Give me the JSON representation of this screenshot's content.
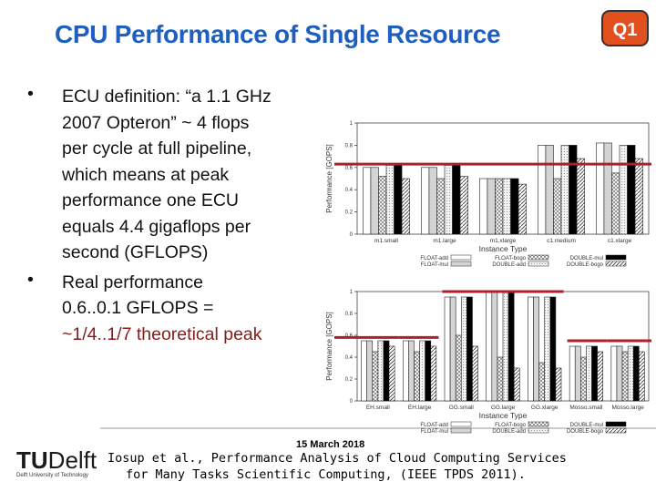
{
  "slide": {
    "title": "CPU Performance of Single Resource",
    "badge": "Q1",
    "bullets": [
      [
        "ECU definition: “a 1.1 GHz",
        "2007 Opteron” ~ 4 flops",
        "per cycle at full pipeline,",
        "which means at peak",
        "performance one ECU",
        "equals 4.4 gigaflops per",
        "second (GFLOPS)"
      ],
      [
        "Real performance",
        "0.6..0.1 GFLOPS =",
        "~1/4..1/7 theoretical peak"
      ]
    ],
    "date": "15 March 2018",
    "citation": [
      "Iosup et al., Performance Analysis of Cloud Computing Services",
      "for Many Tasks Scientific Computing, (IEEE TPDS 2011)."
    ],
    "logo": {
      "tu": "TU",
      "delft": "Delft",
      "subtitle": "Delft University of Technology"
    }
  },
  "chart_data": [
    {
      "type": "bar",
      "ylabel": "Performance [GOPS]",
      "xlabel": "Instance Type",
      "categories": [
        "m1.small",
        "m1.large",
        "m1.xlarge",
        "c1.medium",
        "c1.xlarge"
      ],
      "series": [
        {
          "name": "FLOAT-add",
          "color": "#ffffff",
          "values": [
            0.6,
            0.6,
            0.5,
            0.8,
            0.82
          ]
        },
        {
          "name": "FLOAT-mul",
          "color": "#d4d4d4",
          "values": [
            0.6,
            0.6,
            0.5,
            0.8,
            0.82
          ]
        },
        {
          "name": "FLOAT-bogo",
          "color": "url(#xhatch)",
          "values": [
            0.52,
            0.5,
            0.5,
            0.5,
            0.55
          ]
        },
        {
          "name": "DOUBLE-add",
          "color": "url(#dots)",
          "values": [
            0.62,
            0.62,
            0.5,
            0.8,
            0.8
          ]
        },
        {
          "name": "DOUBLE-mul",
          "color": "#000000",
          "values": [
            0.62,
            0.62,
            0.5,
            0.8,
            0.8
          ]
        },
        {
          "name": "DOUBLE-bogo",
          "color": "url(#dhatch)",
          "values": [
            0.5,
            0.52,
            0.45,
            0.68,
            0.68
          ]
        }
      ],
      "ylim": [
        0,
        1
      ],
      "yticks": [
        0,
        0.2,
        0.4,
        0.6,
        0.8,
        1
      ],
      "red_lines": [
        0.63,
        0.63,
        0.63,
        0.63,
        0.63
      ],
      "red_line_color": "#b01e2e"
    },
    {
      "type": "bar",
      "ylabel": "Performance [GOPS]",
      "xlabel": "Instance Type",
      "categories": [
        "EH.small",
        "EH.large",
        "GG.small",
        "GG.large",
        "GG.xlarge",
        "Mosso.small",
        "Mosso.large"
      ],
      "series": [
        {
          "name": "FLOAT-add",
          "color": "#ffffff",
          "values": [
            0.55,
            0.55,
            0.95,
            1.0,
            0.95,
            0.5,
            0.5
          ]
        },
        {
          "name": "FLOAT-mul",
          "color": "#d4d4d4",
          "values": [
            0.55,
            0.55,
            0.95,
            1.0,
            0.95,
            0.5,
            0.5
          ]
        },
        {
          "name": "FLOAT-bogo",
          "color": "url(#xhatch)",
          "values": [
            0.45,
            0.45,
            0.6,
            0.4,
            0.35,
            0.4,
            0.45
          ]
        },
        {
          "name": "DOUBLE-add",
          "color": "url(#dots)",
          "values": [
            0.55,
            0.55,
            0.95,
            1.0,
            0.95,
            0.5,
            0.5
          ]
        },
        {
          "name": "DOUBLE-mul",
          "color": "#000000",
          "values": [
            0.55,
            0.55,
            0.95,
            1.0,
            0.95,
            0.5,
            0.5
          ]
        },
        {
          "name": "DOUBLE-bogo",
          "color": "url(#dhatch)",
          "values": [
            0.5,
            0.5,
            0.5,
            0.3,
            0.3,
            0.45,
            0.45
          ]
        }
      ],
      "ylim": [
        0,
        1
      ],
      "yticks": [
        0,
        0.2,
        0.4,
        0.6,
        0.8,
        1
      ],
      "red_lines": [
        0.58,
        0.58,
        1.0,
        1.0,
        1.0,
        0.55,
        0.55
      ],
      "red_line_color": "#b01e2e"
    }
  ]
}
